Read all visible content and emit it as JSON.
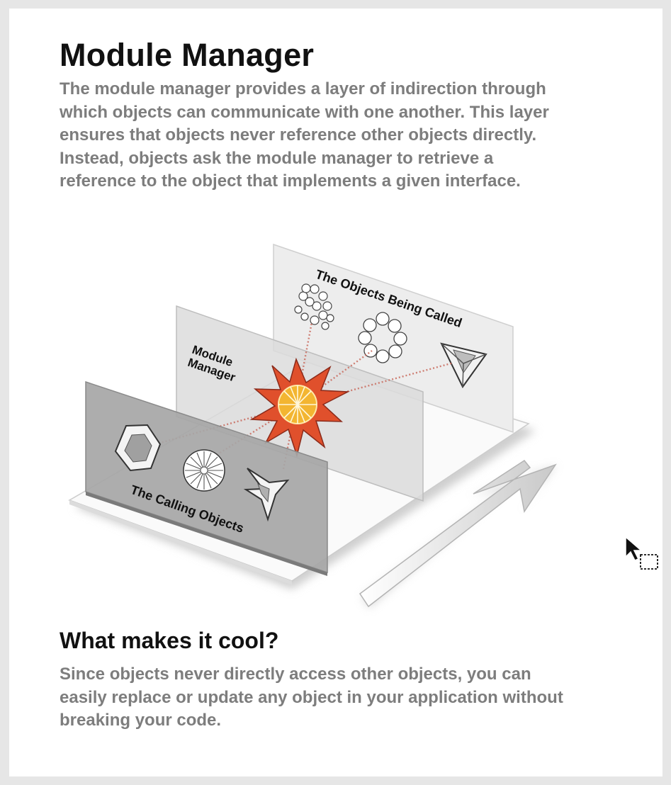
{
  "title": "Module Manager",
  "intro": "The module manager provides a layer of indirection through which objects can communicate with one another. This layer ensures that objects never reference other objects directly. Instead, objects ask the module manager to retrieve a reference to the object that implements a given interface.",
  "diagram": {
    "back_panel_label": "The Objects Being Called",
    "middle_panel_label_line1": "Module",
    "middle_panel_label_line2": "Manager",
    "front_panel_label": "The Calling Objects",
    "colors": {
      "back_panel": "#ededed",
      "middle_panel": "#d9d9d9",
      "front_panel": "#a6a6a6",
      "star_outer": "#e0502c",
      "star_inner": "#f3b531",
      "beam": "#c96b5e"
    }
  },
  "subtitle": "What makes it cool?",
  "outro": "Since objects never directly access other objects, you can easily replace or update any object in your application without breaking your code."
}
